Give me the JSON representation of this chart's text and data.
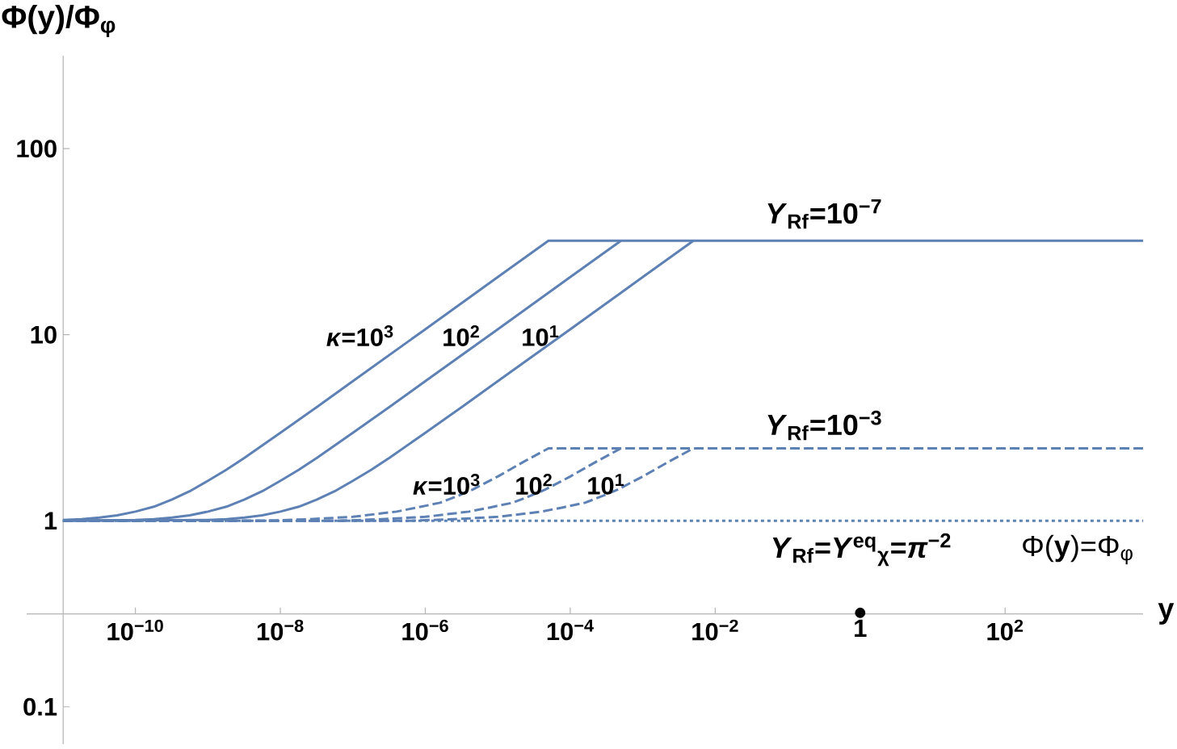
{
  "chart_data": {
    "type": "line",
    "xlabel": "y",
    "ylabel": "Φ(y)/Φ$_{φ}$",
    "log": "xy",
    "xlim": [
      3.16e-12,
      8000
    ],
    "ylim": [
      0.063,
      316
    ],
    "xticks": [
      {
        "value": 1e-10,
        "label": "10$^{−10}$"
      },
      {
        "value": 1e-08,
        "label": "10$^{−8}$"
      },
      {
        "value": 1e-06,
        "label": "10$^{−6}$"
      },
      {
        "value": 0.0001,
        "label": "10$^{−4}$"
      },
      {
        "value": 0.01,
        "label": "10$^{−2}$"
      },
      1,
      {
        "value": 100,
        "label": "10$^{2}$"
      }
    ],
    "yticks": [
      0.1,
      1,
      10,
      100
    ],
    "series": [
      {
        "color": "#5e81b5",
        "line_style": "solid",
        "x": [
          1e-11,
          1.8e-11,
          3.2e-11,
          5.6e-11,
          1e-10,
          1.8e-10,
          3.2e-10,
          5.6e-10,
          1e-09,
          1.8e-09,
          3.2e-09,
          1e-08,
          3.2e-08,
          1e-07,
          1e-06,
          1e-05,
          5e-05,
          8000
        ],
        "values": [
          1.01,
          1.02,
          1.04,
          1.07,
          1.12,
          1.19,
          1.3,
          1.44,
          1.64,
          1.88,
          2.18,
          2.97,
          4.09,
          5.63,
          10.7,
          20.4,
          32,
          32
        ]
      },
      {
        "color": "#5e81b5",
        "line_style": "solid",
        "x": [
          1e-11,
          1e-10,
          1.8e-10,
          3.2e-10,
          5.6e-10,
          1e-09,
          1.8e-09,
          3.2e-09,
          5.6e-09,
          1e-08,
          1.8e-08,
          3.2e-08,
          1e-07,
          3.2e-07,
          1e-06,
          1e-05,
          0.0001,
          0.0005
        ],
        "values": [
          1.0,
          1.01,
          1.02,
          1.04,
          1.07,
          1.12,
          1.19,
          1.3,
          1.44,
          1.64,
          1.88,
          2.18,
          2.97,
          4.09,
          5.63,
          10.7,
          20.4,
          32
        ]
      },
      {
        "color": "#5e81b5",
        "line_style": "solid",
        "x": [
          1e-11,
          1e-09,
          1.8e-09,
          3.2e-09,
          5.6e-09,
          1e-08,
          1.8e-08,
          3.2e-08,
          5.6e-08,
          1e-07,
          1.8e-07,
          3.2e-07,
          1e-06,
          3.2e-06,
          1e-05,
          0.0001,
          0.001,
          0.005
        ],
        "values": [
          1.0,
          1.01,
          1.02,
          1.04,
          1.07,
          1.12,
          1.19,
          1.3,
          1.44,
          1.64,
          1.88,
          2.18,
          2.97,
          4.09,
          5.63,
          10.7,
          20.4,
          32
        ]
      },
      {
        "color": "#5e81b5",
        "line_style": "dashed",
        "x": [
          1e-11,
          6.3e-09,
          2.5e-08,
          1e-07,
          4e-07,
          7.9e-07,
          1.6e-06,
          2.8e-06,
          4.5e-06,
          1e-05,
          2.3e-05,
          5e-05,
          8000
        ],
        "values": [
          1.0,
          1.0,
          1.02,
          1.05,
          1.12,
          1.18,
          1.25,
          1.36,
          1.47,
          1.73,
          2.08,
          2.45,
          2.45
        ]
      },
      {
        "color": "#5e81b5",
        "line_style": "dashed",
        "x": [
          1e-11,
          6.3e-08,
          2.5e-07,
          1e-06,
          4e-06,
          7.9e-06,
          1.6e-05,
          2.8e-05,
          4.5e-05,
          0.0001,
          0.00023,
          0.0005
        ],
        "values": [
          1.0,
          1.0,
          1.02,
          1.05,
          1.12,
          1.18,
          1.25,
          1.36,
          1.47,
          1.73,
          2.08,
          2.45
        ]
      },
      {
        "color": "#5e81b5",
        "line_style": "dashed",
        "x": [
          1e-11,
          6.3e-07,
          2.5e-06,
          1e-05,
          4e-05,
          7.9e-05,
          0.00016,
          0.00028,
          0.00045,
          0.001,
          0.0023,
          0.005
        ],
        "values": [
          1.0,
          1.0,
          1.02,
          1.05,
          1.12,
          1.18,
          1.25,
          1.36,
          1.47,
          1.73,
          2.08,
          2.45
        ]
      },
      {
        "color": "#5e81b5",
        "line_style": "dotted",
        "x": [
          1e-11,
          8000
        ],
        "values": [
          1.0,
          1.0
        ]
      },
      {
        "type": "scatter",
        "color": "#000000",
        "marker": "circle",
        "x": [
          1
        ],
        "values": [
          0.32
        ]
      }
    ],
    "annotations": [
      "*Y*$_{Rf}$=10$^{−7}$",
      "*κ*=10$^{3}$",
      "10$^{2}$",
      "10$^{1}$",
      "*Y*$_{Rf}$=10$^{−3}$",
      "*κ*=10$^{3}$",
      "10$^{2}$",
      "10$^{1}$",
      "*Y*$_{Rf}$=*Y*$^{eq}$$_{χ}$=*π*$^{−2}$",
      "Φ(**y**)=Φ$_{φ}$"
    ]
  }
}
